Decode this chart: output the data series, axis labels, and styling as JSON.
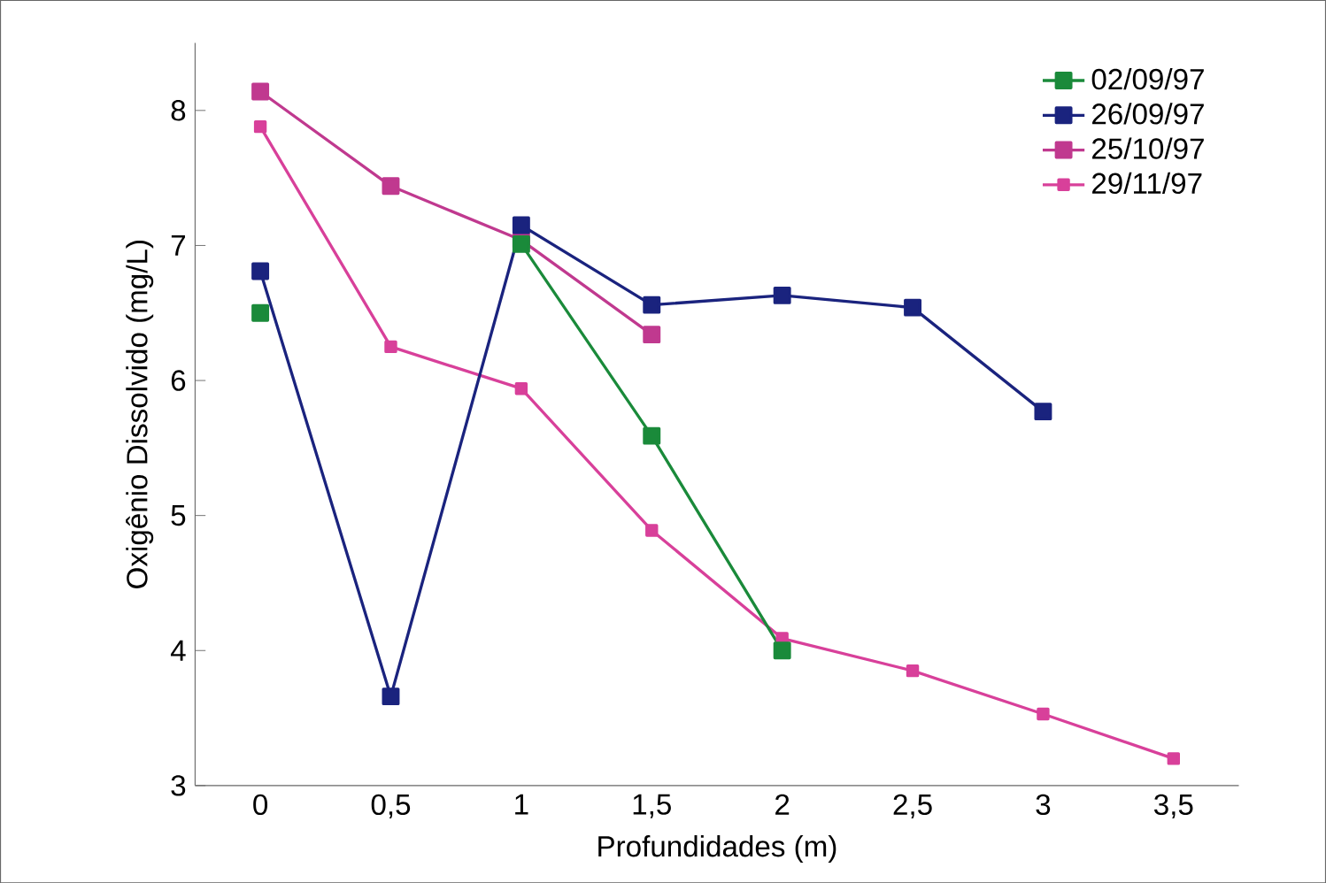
{
  "chart_data": {
    "type": "line",
    "xlabel": "Profundidades (m)",
    "ylabel": "Oxigênio Dissolvido (mg/L)",
    "categories": [
      "0",
      "0,5",
      "1",
      "1,5",
      "2",
      "2,5",
      "3",
      "3,5"
    ],
    "series": [
      {
        "name": "02/09/97",
        "color": "#1a8a3a",
        "values": [
          6.5,
          null,
          7.01,
          5.59,
          4.0,
          null,
          null,
          null
        ]
      },
      {
        "name": "26/09/97",
        "color": "#1a237e",
        "values": [
          6.81,
          3.66,
          7.15,
          6.56,
          6.63,
          6.54,
          5.77,
          null
        ]
      },
      {
        "name": "25/10/97",
        "color": "#c0398f",
        "values": [
          8.14,
          7.44,
          7.04,
          6.34,
          null,
          null,
          null,
          null
        ]
      },
      {
        "name": "29/11/97",
        "color": "#d8409a",
        "values": [
          7.88,
          6.25,
          5.94,
          4.89,
          4.09,
          3.85,
          3.53,
          3.2
        ]
      }
    ],
    "ylim": [
      3,
      8.5
    ],
    "yticks": [
      3,
      4,
      5,
      6,
      7,
      8
    ],
    "grid": false,
    "legend": "top right",
    "marker": "square",
    "line_style": "solid"
  }
}
